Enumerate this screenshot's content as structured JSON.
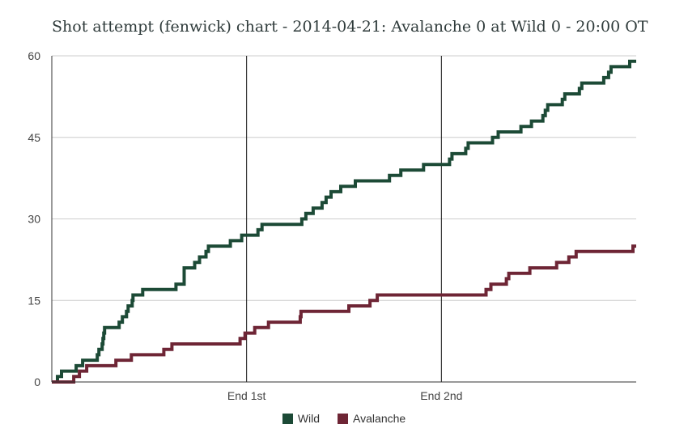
{
  "chart_data": {
    "type": "line",
    "title": "Shot attempt (fenwick) chart - 2014-04-21: Avalanche 0 at Wild 0 - 20:00 OT",
    "xlabel": "",
    "ylabel": "",
    "ylim": [
      0,
      60
    ],
    "yticks": [
      "0",
      "15",
      "30",
      "45",
      "60"
    ],
    "xlim": [
      0,
      72
    ],
    "period_markers": [
      {
        "x": 24,
        "label": "End 1st"
      },
      {
        "x": 48,
        "label": "End 2nd"
      }
    ],
    "grid": true,
    "legend_position": "bottom",
    "series": [
      {
        "name": "Wild",
        "color": "#1c4a36",
        "points": [
          [
            0,
            0
          ],
          [
            0.7,
            1
          ],
          [
            1.2,
            2
          ],
          [
            3,
            3
          ],
          [
            3.8,
            4
          ],
          [
            5.6,
            5
          ],
          [
            5.8,
            6
          ],
          [
            6.2,
            7
          ],
          [
            6.3,
            8
          ],
          [
            6.4,
            9
          ],
          [
            6.5,
            10
          ],
          [
            8.3,
            11
          ],
          [
            8.7,
            12
          ],
          [
            9.2,
            13
          ],
          [
            9.4,
            14
          ],
          [
            9.9,
            15
          ],
          [
            10,
            16
          ],
          [
            11.2,
            17
          ],
          [
            15.3,
            18
          ],
          [
            16.3,
            21
          ],
          [
            17.6,
            22
          ],
          [
            18.2,
            23
          ],
          [
            19,
            24
          ],
          [
            19.3,
            25
          ],
          [
            22,
            26
          ],
          [
            23.4,
            27
          ],
          [
            25.4,
            28
          ],
          [
            25.9,
            29
          ],
          [
            30.8,
            30
          ],
          [
            31.3,
            31
          ],
          [
            32.2,
            32
          ],
          [
            33.3,
            33
          ],
          [
            33.8,
            34
          ],
          [
            34.4,
            35
          ],
          [
            35.6,
            36
          ],
          [
            37.4,
            37
          ],
          [
            41.6,
            38
          ],
          [
            43,
            39
          ],
          [
            45.8,
            40
          ],
          [
            49,
            41
          ],
          [
            49.3,
            42
          ],
          [
            51,
            43
          ],
          [
            51.3,
            44
          ],
          [
            54.3,
            45
          ],
          [
            55,
            46
          ],
          [
            57.8,
            47
          ],
          [
            59.1,
            48
          ],
          [
            60.5,
            49
          ],
          [
            60.8,
            50
          ],
          [
            61.1,
            51
          ],
          [
            62.9,
            52
          ],
          [
            63.2,
            53
          ],
          [
            65,
            54
          ],
          [
            65.3,
            55
          ],
          [
            68,
            56
          ],
          [
            68.6,
            57
          ],
          [
            68.9,
            58
          ],
          [
            71.2,
            59
          ],
          [
            72,
            59
          ]
        ]
      },
      {
        "name": "Avalanche",
        "color": "#6e2535",
        "points": [
          [
            0,
            0
          ],
          [
            2.7,
            1
          ],
          [
            3.4,
            2
          ],
          [
            4.3,
            3
          ],
          [
            7.9,
            4
          ],
          [
            9.8,
            5
          ],
          [
            13.8,
            6
          ],
          [
            14.8,
            7
          ],
          [
            23.2,
            8
          ],
          [
            23.8,
            9
          ],
          [
            25,
            10
          ],
          [
            26.7,
            11
          ],
          [
            30.6,
            12
          ],
          [
            30.7,
            13
          ],
          [
            36.6,
            14
          ],
          [
            39.2,
            15
          ],
          [
            40.1,
            16
          ],
          [
            53.5,
            17
          ],
          [
            54.1,
            18
          ],
          [
            56,
            19
          ],
          [
            56.3,
            20
          ],
          [
            58.9,
            21
          ],
          [
            62.2,
            22
          ],
          [
            63.7,
            23
          ],
          [
            64.6,
            24
          ],
          [
            71.6,
            25
          ],
          [
            72,
            25
          ]
        ]
      }
    ]
  }
}
